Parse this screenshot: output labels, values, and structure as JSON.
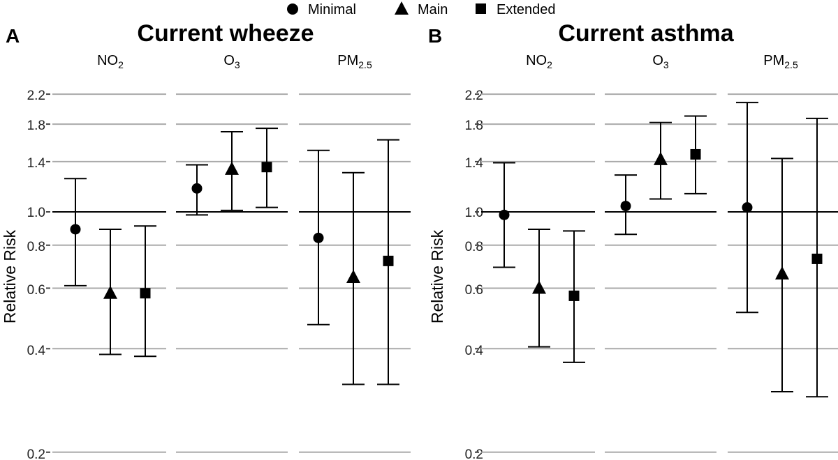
{
  "legend": {
    "items": [
      {
        "label": "Minimal",
        "shape": "circle"
      },
      {
        "label": "Main",
        "shape": "triangle"
      },
      {
        "label": "Extended",
        "shape": "square"
      }
    ]
  },
  "chart_data": [
    {
      "type": "errorbar",
      "panel_letter": "A",
      "title": "Current wheeze",
      "ylabel": "Relative Risk",
      "y_scale": "log",
      "ylim": [
        0.2,
        2.2
      ],
      "yticks": [
        0.2,
        0.4,
        0.6,
        0.8,
        1.0,
        1.4,
        1.8,
        2.2
      ],
      "ytick_labels": [
        "0.2",
        "0.4",
        "0.6",
        "0.8",
        "1.0",
        "1.4",
        "1.8",
        "2.2"
      ],
      "reference_line": 1.0,
      "facets": [
        {
          "label_main": "NO",
          "label_sub": "2",
          "points": [
            {
              "series": "Minimal",
              "estimate": 0.89,
              "lower": 0.61,
              "upper": 1.25
            },
            {
              "series": "Main",
              "estimate": 0.58,
              "lower": 0.385,
              "upper": 0.89
            },
            {
              "series": "Extended",
              "estimate": 0.58,
              "lower": 0.38,
              "upper": 0.91
            }
          ]
        },
        {
          "label_main": "O",
          "label_sub": "3",
          "points": [
            {
              "series": "Minimal",
              "estimate": 1.17,
              "lower": 0.98,
              "upper": 1.37
            },
            {
              "series": "Main",
              "estimate": 1.33,
              "lower": 1.01,
              "upper": 1.71
            },
            {
              "series": "Extended",
              "estimate": 1.35,
              "lower": 1.03,
              "upper": 1.75
            }
          ]
        },
        {
          "label_main": "PM",
          "label_sub": "2.5",
          "points": [
            {
              "series": "Minimal",
              "estimate": 0.84,
              "lower": 0.47,
              "upper": 1.51
            },
            {
              "series": "Main",
              "estimate": 0.645,
              "lower": 0.315,
              "upper": 1.3
            },
            {
              "series": "Extended",
              "estimate": 0.72,
              "lower": 0.315,
              "upper": 1.62
            }
          ]
        }
      ]
    },
    {
      "type": "errorbar",
      "panel_letter": "B",
      "title": "Current asthma",
      "ylabel": "Relative Risk",
      "y_scale": "log",
      "ylim": [
        0.2,
        2.2
      ],
      "yticks": [
        0.2,
        0.4,
        0.6,
        0.8,
        1.0,
        1.4,
        1.8,
        2.2
      ],
      "ytick_labels": [
        "0.2",
        "0.4",
        "0.6",
        "0.8",
        "1.0",
        "1.4",
        "1.8",
        "2.2"
      ],
      "reference_line": 1.0,
      "facets": [
        {
          "label_main": "NO",
          "label_sub": "2",
          "points": [
            {
              "series": "Minimal",
              "estimate": 0.98,
              "lower": 0.69,
              "upper": 1.39
            },
            {
              "series": "Main",
              "estimate": 0.6,
              "lower": 0.405,
              "upper": 0.89
            },
            {
              "series": "Extended",
              "estimate": 0.57,
              "lower": 0.365,
              "upper": 0.88
            }
          ]
        },
        {
          "label_main": "O",
          "label_sub": "3",
          "points": [
            {
              "series": "Minimal",
              "estimate": 1.04,
              "lower": 0.86,
              "upper": 1.28
            },
            {
              "series": "Main",
              "estimate": 1.42,
              "lower": 1.09,
              "upper": 1.82
            },
            {
              "series": "Extended",
              "estimate": 1.47,
              "lower": 1.13,
              "upper": 1.9
            }
          ]
        },
        {
          "label_main": "PM",
          "label_sub": "2.5",
          "points": [
            {
              "series": "Minimal",
              "estimate": 1.03,
              "lower": 0.51,
              "upper": 2.08
            },
            {
              "series": "Main",
              "estimate": 0.66,
              "lower": 0.3,
              "upper": 1.43
            },
            {
              "series": "Extended",
              "estimate": 0.73,
              "lower": 0.29,
              "upper": 1.87
            }
          ]
        }
      ]
    }
  ]
}
